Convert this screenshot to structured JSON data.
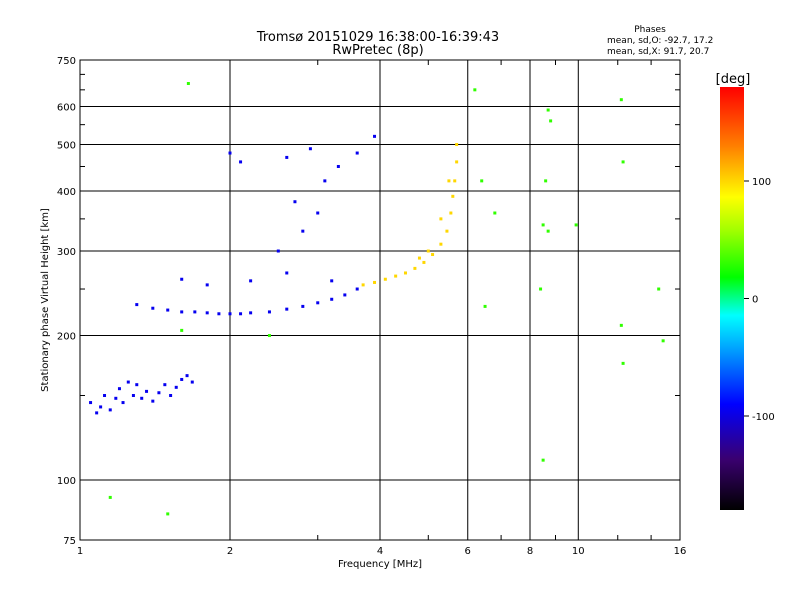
{
  "chart_data": {
    "type": "scatter",
    "title": "Tromsø 20151029 16:38:00-16:39:43",
    "subtitle": "RwPretec (8p)",
    "xlabel": "Frequency [MHz]",
    "ylabel": "Stationary phase Virtual Height [km]",
    "x_scale": "log",
    "y_scale": "log",
    "xlim": [
      1,
      16
    ],
    "ylim": [
      75,
      750
    ],
    "x_ticks": [
      1,
      2,
      4,
      6,
      8,
      10,
      16
    ],
    "x_tick_labels": [
      "1",
      "2",
      "4",
      "6",
      "8",
      "10",
      "16"
    ],
    "y_ticks": [
      75,
      100,
      200,
      300,
      400,
      500,
      600,
      750
    ],
    "y_tick_labels": [
      "75",
      "100",
      "200",
      "300",
      "400",
      "500",
      "600",
      "750"
    ],
    "grid": true,
    "phase_summary": {
      "heading": "Phases",
      "line_o": "mean, sd,O: -92.7, 17.2",
      "line_x": "mean, sd,X:  91.7, 20.7"
    },
    "colorbar": {
      "label": "[deg]",
      "range": [
        -180,
        180
      ],
      "ticks": [
        -100,
        0,
        100
      ],
      "tick_labels": [
        "-100",
        "0",
        "100"
      ]
    },
    "series": [
      {
        "description": "E / low layer echoes (blue)",
        "points": [
          [
            1.05,
            145
          ],
          [
            1.08,
            138
          ],
          [
            1.1,
            142
          ],
          [
            1.12,
            150
          ],
          [
            1.15,
            140
          ],
          [
            1.18,
            148
          ],
          [
            1.2,
            155
          ],
          [
            1.22,
            145
          ],
          [
            1.25,
            160
          ],
          [
            1.28,
            150
          ],
          [
            1.3,
            158
          ],
          [
            1.33,
            148
          ],
          [
            1.36,
            153
          ],
          [
            1.4,
            146
          ],
          [
            1.44,
            152
          ],
          [
            1.48,
            158
          ],
          [
            1.52,
            150
          ],
          [
            1.56,
            156
          ],
          [
            1.6,
            162
          ],
          [
            1.64,
            165
          ],
          [
            1.68,
            160
          ]
        ],
        "phase": -95
      },
      {
        "description": "F-layer O-mode trace (blue)",
        "points": [
          [
            1.3,
            232
          ],
          [
            1.4,
            228
          ],
          [
            1.5,
            226
          ],
          [
            1.6,
            224
          ],
          [
            1.7,
            224
          ],
          [
            1.8,
            223
          ],
          [
            1.9,
            222
          ],
          [
            2.0,
            222
          ],
          [
            2.1,
            222
          ],
          [
            2.2,
            223
          ],
          [
            2.4,
            224
          ],
          [
            2.6,
            227
          ],
          [
            2.8,
            230
          ],
          [
            3.0,
            234
          ],
          [
            3.2,
            238
          ],
          [
            3.4,
            243
          ],
          [
            3.6,
            250
          ],
          [
            3.2,
            260
          ],
          [
            2.6,
            270
          ],
          [
            2.2,
            260
          ],
          [
            1.8,
            255
          ],
          [
            1.6,
            262
          ],
          [
            2.5,
            300
          ],
          [
            2.8,
            330
          ],
          [
            3.0,
            360
          ],
          [
            2.7,
            380
          ],
          [
            3.1,
            420
          ],
          [
            3.3,
            450
          ],
          [
            3.6,
            480
          ],
          [
            3.9,
            520
          ],
          [
            2.0,
            480
          ],
          [
            2.1,
            460
          ],
          [
            2.6,
            470
          ],
          [
            2.9,
            490
          ]
        ],
        "phase": -95
      },
      {
        "description": "F-layer X-mode trace (yellow/orange)",
        "points": [
          [
            3.7,
            255
          ],
          [
            3.9,
            258
          ],
          [
            4.1,
            262
          ],
          [
            4.3,
            266
          ],
          [
            4.5,
            270
          ],
          [
            4.7,
            276
          ],
          [
            4.9,
            284
          ],
          [
            5.1,
            295
          ],
          [
            5.3,
            310
          ],
          [
            5.45,
            330
          ],
          [
            5.55,
            360
          ],
          [
            5.6,
            390
          ],
          [
            5.65,
            420
          ],
          [
            5.7,
            460
          ],
          [
            5.7,
            500
          ],
          [
            5.0,
            300
          ],
          [
            4.8,
            290
          ],
          [
            5.3,
            350
          ],
          [
            5.5,
            420
          ]
        ],
        "phase": 100
      },
      {
        "description": "Scattered outliers",
        "points": [
          [
            1.65,
            670
          ],
          [
            6.2,
            650
          ],
          [
            8.7,
            590
          ],
          [
            8.8,
            560
          ],
          [
            8.6,
            420
          ],
          [
            8.5,
            340
          ],
          [
            8.7,
            330
          ],
          [
            9.9,
            340
          ],
          [
            12.2,
            620
          ],
          [
            12.3,
            460
          ],
          [
            12.2,
            210
          ],
          [
            12.3,
            175
          ],
          [
            14.5,
            250
          ],
          [
            14.8,
            195
          ],
          [
            6.5,
            230
          ],
          [
            6.8,
            360
          ],
          [
            6.4,
            420
          ],
          [
            8.5,
            110
          ],
          [
            8.4,
            250
          ],
          [
            1.15,
            92
          ],
          [
            1.5,
            85
          ],
          [
            2.4,
            200
          ],
          [
            1.6,
            205
          ]
        ],
        "phase": 30
      }
    ]
  }
}
